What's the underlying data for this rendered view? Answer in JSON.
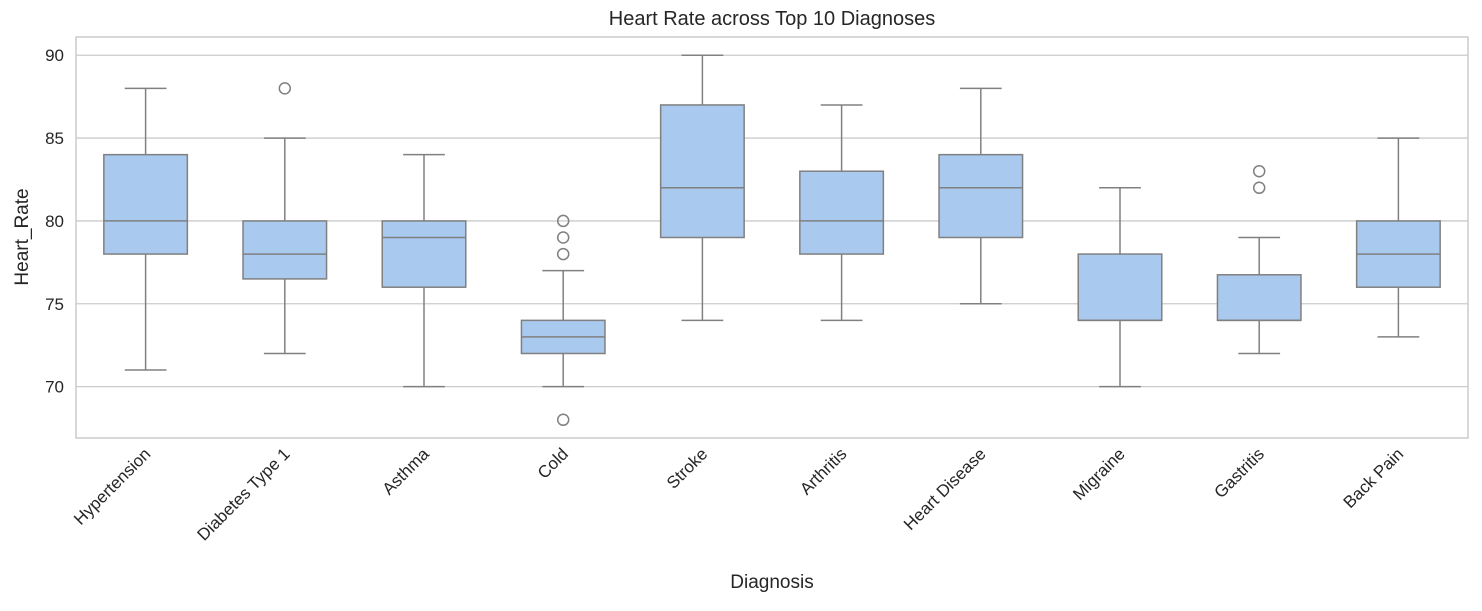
{
  "chart_data": {
    "type": "boxplot",
    "title": "Heart Rate across Top 10 Diagnoses",
    "xlabel": "Diagnosis",
    "ylabel": "Heart_Rate",
    "ylim": [
      66.9,
      91.1
    ],
    "yticks": [
      70,
      75,
      80,
      85,
      90
    ],
    "grid": true,
    "colors": {
      "box_fill": "#a9c9ef",
      "box_edge": "#808080",
      "grid": "#cccccc"
    },
    "categories": [
      "Hypertension",
      "Diabetes Type 1",
      "Asthma",
      "Cold",
      "Stroke",
      "Arthritis",
      "Heart Disease",
      "Migraine",
      "Gastritis",
      "Back Pain"
    ],
    "boxes": [
      {
        "category": "Hypertension",
        "whislo": 71,
        "q1": 78,
        "med": 80,
        "q3": 84,
        "whishi": 88,
        "fliers": []
      },
      {
        "category": "Diabetes Type 1",
        "whislo": 72,
        "q1": 76.5,
        "med": 78,
        "q3": 80,
        "whishi": 85,
        "fliers": [
          88
        ]
      },
      {
        "category": "Asthma",
        "whislo": 70,
        "q1": 76,
        "med": 79,
        "q3": 80,
        "whishi": 84,
        "fliers": []
      },
      {
        "category": "Cold",
        "whislo": 70,
        "q1": 72,
        "med": 73,
        "q3": 74,
        "whishi": 77,
        "fliers": [
          80,
          79,
          78,
          68
        ]
      },
      {
        "category": "Stroke",
        "whislo": 74,
        "q1": 79,
        "med": 82,
        "q3": 87,
        "whishi": 90,
        "fliers": []
      },
      {
        "category": "Arthritis",
        "whislo": 74,
        "q1": 78,
        "med": 80,
        "q3": 83,
        "whishi": 87,
        "fliers": []
      },
      {
        "category": "Heart Disease",
        "whislo": 75,
        "q1": 79,
        "med": 82,
        "q3": 84,
        "whishi": 88,
        "fliers": []
      },
      {
        "category": "Migraine",
        "whislo": 70,
        "q1": 74,
        "med": 74,
        "q3": 78,
        "whishi": 82,
        "fliers": []
      },
      {
        "category": "Gastritis",
        "whislo": 72,
        "q1": 74,
        "med": 74,
        "q3": 76.75,
        "whishi": 79,
        "fliers": [
          83,
          82
        ]
      },
      {
        "category": "Back Pain",
        "whislo": 73,
        "q1": 76,
        "med": 78,
        "q3": 80,
        "whishi": 85,
        "fliers": []
      }
    ]
  }
}
